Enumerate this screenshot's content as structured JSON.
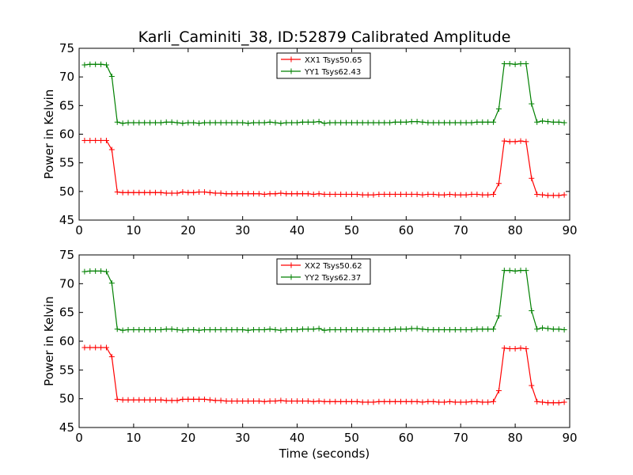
{
  "figure": {
    "title": "Karli_Caminiti_38, ID:52879 Calibrated Amplitude",
    "xlabel": "Time (seconds)"
  },
  "chart_data": [
    {
      "type": "line",
      "ylabel": "Power in Kelvin",
      "xlabel": "",
      "xlim": [
        0,
        90
      ],
      "ylim": [
        45,
        75
      ],
      "xticks": [
        0,
        10,
        20,
        30,
        40,
        50,
        60,
        70,
        80,
        90
      ],
      "yticks": [
        45,
        50,
        55,
        60,
        65,
        70,
        75
      ],
      "grid": false,
      "legend": "top-center",
      "x": [
        1,
        2,
        3,
        4,
        5,
        6,
        7,
        8,
        9,
        10,
        11,
        12,
        13,
        14,
        15,
        16,
        17,
        18,
        19,
        20,
        21,
        22,
        23,
        24,
        25,
        26,
        27,
        28,
        29,
        30,
        31,
        32,
        33,
        34,
        35,
        36,
        37,
        38,
        39,
        40,
        41,
        42,
        43,
        44,
        45,
        46,
        47,
        48,
        49,
        50,
        51,
        52,
        53,
        54,
        55,
        56,
        57,
        58,
        59,
        60,
        61,
        62,
        63,
        64,
        65,
        66,
        67,
        68,
        69,
        70,
        71,
        72,
        73,
        74,
        75,
        76,
        77,
        78,
        79,
        80,
        81,
        82,
        83,
        84,
        85,
        86,
        87,
        88,
        89
      ],
      "series": [
        {
          "name": "XX1 Tsys50.65",
          "color": "#ff0000",
          "values": [
            58.9,
            58.9,
            58.9,
            58.9,
            58.9,
            57.3,
            49.9,
            49.8,
            49.8,
            49.8,
            49.8,
            49.8,
            49.8,
            49.8,
            49.8,
            49.7,
            49.7,
            49.7,
            49.9,
            49.8,
            49.8,
            49.9,
            49.9,
            49.8,
            49.7,
            49.7,
            49.6,
            49.6,
            49.6,
            49.6,
            49.6,
            49.6,
            49.6,
            49.5,
            49.6,
            49.6,
            49.7,
            49.6,
            49.6,
            49.6,
            49.6,
            49.6,
            49.5,
            49.6,
            49.5,
            49.5,
            49.5,
            49.5,
            49.5,
            49.5,
            49.5,
            49.4,
            49.4,
            49.4,
            49.5,
            49.5,
            49.5,
            49.5,
            49.5,
            49.5,
            49.5,
            49.5,
            49.4,
            49.5,
            49.5,
            49.4,
            49.4,
            49.5,
            49.4,
            49.4,
            49.4,
            49.5,
            49.5,
            49.4,
            49.4,
            49.5,
            51.4,
            58.8,
            58.7,
            58.7,
            58.8,
            58.7,
            52.3,
            49.5,
            49.4,
            49.3,
            49.3,
            49.3,
            49.4
          ]
        },
        {
          "name": "YY1 Tsys62.43",
          "color": "#008000",
          "values": [
            72.1,
            72.2,
            72.2,
            72.2,
            72.1,
            70.1,
            62.1,
            61.9,
            62.0,
            62.0,
            62.0,
            62.0,
            62.0,
            62.0,
            62.0,
            62.1,
            62.1,
            62.0,
            61.9,
            62.0,
            62.0,
            61.9,
            62.0,
            62.0,
            62.0,
            62.0,
            62.0,
            62.0,
            62.0,
            62.0,
            61.9,
            62.0,
            62.0,
            62.0,
            62.1,
            62.0,
            61.9,
            62.0,
            62.0,
            62.0,
            62.1,
            62.1,
            62.1,
            62.2,
            61.9,
            62.0,
            62.0,
            62.0,
            62.0,
            62.0,
            62.0,
            62.0,
            62.0,
            62.0,
            62.0,
            62.0,
            62.0,
            62.1,
            62.1,
            62.1,
            62.2,
            62.2,
            62.1,
            62.0,
            62.0,
            62.0,
            62.0,
            62.0,
            62.0,
            62.0,
            62.0,
            62.0,
            62.1,
            62.1,
            62.1,
            62.1,
            64.4,
            72.3,
            72.3,
            72.2,
            72.3,
            72.3,
            65.3,
            62.1,
            62.3,
            62.2,
            62.1,
            62.1,
            62.0
          ]
        }
      ]
    },
    {
      "type": "line",
      "ylabel": "Power in Kelvin",
      "xlabel": "Time (seconds)",
      "xlim": [
        0,
        90
      ],
      "ylim": [
        45,
        75
      ],
      "xticks": [
        0,
        10,
        20,
        30,
        40,
        50,
        60,
        70,
        80,
        90
      ],
      "yticks": [
        45,
        50,
        55,
        60,
        65,
        70,
        75
      ],
      "grid": false,
      "legend": "top-center",
      "x": [
        1,
        2,
        3,
        4,
        5,
        6,
        7,
        8,
        9,
        10,
        11,
        12,
        13,
        14,
        15,
        16,
        17,
        18,
        19,
        20,
        21,
        22,
        23,
        24,
        25,
        26,
        27,
        28,
        29,
        30,
        31,
        32,
        33,
        34,
        35,
        36,
        37,
        38,
        39,
        40,
        41,
        42,
        43,
        44,
        45,
        46,
        47,
        48,
        49,
        50,
        51,
        52,
        53,
        54,
        55,
        56,
        57,
        58,
        59,
        60,
        61,
        62,
        63,
        64,
        65,
        66,
        67,
        68,
        69,
        70,
        71,
        72,
        73,
        74,
        75,
        76,
        77,
        78,
        79,
        80,
        81,
        82,
        83,
        84,
        85,
        86,
        87,
        88,
        89
      ],
      "series": [
        {
          "name": "XX2 Tsys50.62",
          "color": "#ff0000",
          "values": [
            58.9,
            58.9,
            58.9,
            58.9,
            58.9,
            57.3,
            49.9,
            49.8,
            49.8,
            49.8,
            49.8,
            49.8,
            49.8,
            49.8,
            49.8,
            49.7,
            49.7,
            49.7,
            49.9,
            49.9,
            49.9,
            49.9,
            49.9,
            49.8,
            49.7,
            49.7,
            49.6,
            49.6,
            49.6,
            49.6,
            49.6,
            49.6,
            49.6,
            49.5,
            49.6,
            49.6,
            49.7,
            49.6,
            49.6,
            49.6,
            49.6,
            49.6,
            49.5,
            49.6,
            49.5,
            49.5,
            49.5,
            49.5,
            49.5,
            49.5,
            49.5,
            49.4,
            49.4,
            49.4,
            49.5,
            49.5,
            49.5,
            49.5,
            49.5,
            49.5,
            49.5,
            49.5,
            49.4,
            49.5,
            49.5,
            49.4,
            49.4,
            49.5,
            49.4,
            49.4,
            49.4,
            49.5,
            49.5,
            49.4,
            49.4,
            49.5,
            51.4,
            58.8,
            58.7,
            58.7,
            58.8,
            58.7,
            52.3,
            49.5,
            49.4,
            49.3,
            49.3,
            49.3,
            49.4
          ]
        },
        {
          "name": "YY2 Tsys62.37",
          "color": "#008000",
          "values": [
            72.1,
            72.2,
            72.2,
            72.2,
            72.1,
            70.1,
            62.1,
            61.9,
            62.0,
            62.0,
            62.0,
            62.0,
            62.0,
            62.0,
            62.0,
            62.1,
            62.1,
            62.0,
            61.9,
            62.0,
            62.0,
            61.9,
            62.0,
            62.0,
            62.0,
            62.0,
            62.0,
            62.0,
            62.0,
            62.0,
            61.9,
            62.0,
            62.0,
            62.0,
            62.1,
            62.0,
            61.9,
            62.0,
            62.0,
            62.0,
            62.1,
            62.1,
            62.1,
            62.2,
            61.9,
            62.0,
            62.0,
            62.0,
            62.0,
            62.0,
            62.0,
            62.0,
            62.0,
            62.0,
            62.0,
            62.0,
            62.0,
            62.1,
            62.1,
            62.1,
            62.2,
            62.2,
            62.1,
            62.0,
            62.0,
            62.0,
            62.0,
            62.0,
            62.0,
            62.0,
            62.0,
            62.0,
            62.1,
            62.1,
            62.1,
            62.1,
            64.4,
            72.3,
            72.3,
            72.2,
            72.3,
            72.3,
            65.3,
            62.1,
            62.3,
            62.2,
            62.1,
            62.1,
            62.0
          ]
        }
      ]
    }
  ]
}
